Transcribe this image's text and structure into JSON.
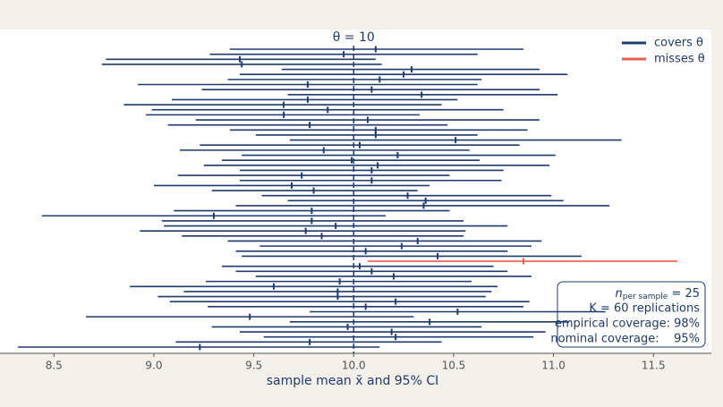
{
  "chart_data": {
    "type": "interval",
    "title": "θ = 10",
    "x_label": "sample mean x̄ and 95% CI",
    "reference": 10,
    "series": [
      {
        "name": "covers θ",
        "color": "#1f3a6e"
      },
      {
        "name": "misses θ",
        "color": "#e8604c"
      }
    ],
    "means": [
      10.11,
      9.95,
      9.43,
      9.44,
      10.29,
      10.25,
      10.13,
      9.77,
      10.09,
      10.34,
      9.77,
      9.65,
      9.87,
      9.65,
      10.07,
      9.78,
      10.11,
      10.11,
      10.51,
      10.03,
      9.85,
      10.22,
      9.99,
      10.12,
      10.09,
      9.74,
      10.09,
      9.69,
      9.8,
      10.27,
      10.36,
      10.35,
      9.79,
      9.3,
      9.79,
      9.91,
      9.76,
      9.84,
      10.32,
      10.24,
      10.06,
      10.42,
      10.85,
      10.03,
      10.09,
      10.2,
      9.93,
      9.6,
      9.92,
      9.92,
      10.21,
      10.06,
      10.52,
      9.48,
      10.38,
      9.97,
      10.19,
      10.21,
      9.78,
      9.23
    ],
    "lower": [
      9.38,
      9.28,
      8.76,
      8.74,
      9.64,
      9.43,
      9.37,
      8.92,
      9.24,
      9.67,
      9.09,
      8.85,
      8.99,
      8.96,
      9.21,
      9.07,
      9.38,
      9.51,
      9.68,
      9.23,
      9.13,
      9.44,
      9.34,
      9.25,
      9.43,
      9.12,
      9.43,
      9.0,
      9.29,
      9.54,
      9.67,
      9.41,
      9.1,
      8.44,
      9.04,
      9.05,
      8.93,
      9.14,
      9.37,
      9.53,
      9.41,
      9.44,
      10.07,
      9.34,
      9.41,
      9.51,
      9.26,
      8.88,
      9.15,
      9.02,
      9.08,
      9.27,
      9.78,
      8.66,
      9.68,
      9.29,
      9.43,
      9.55,
      9.11,
      8.32
    ],
    "upper": [
      10.85,
      10.62,
      10.11,
      10.14,
      10.93,
      11.07,
      10.64,
      10.62,
      10.93,
      11.02,
      10.52,
      10.44,
      10.75,
      10.33,
      10.93,
      10.47,
      10.87,
      10.62,
      11.34,
      10.83,
      10.58,
      11.01,
      10.63,
      10.98,
      10.75,
      10.48,
      10.74,
      10.38,
      10.32,
      10.99,
      11.05,
      11.28,
      10.48,
      10.16,
      10.55,
      10.77,
      10.56,
      10.55,
      10.94,
      10.89,
      10.77,
      11.14,
      11.62,
      10.7,
      10.77,
      10.89,
      10.59,
      10.72,
      10.69,
      10.66,
      10.88,
      10.85,
      11.26,
      10.3,
      11.08,
      10.64,
      10.96,
      10.9,
      10.44,
      10.13
    ],
    "xlim": [
      8.23,
      11.79
    ],
    "xticks": [
      8.5,
      {
        "value": 9,
        "label": "9.0"
      },
      9.5,
      {
        "value": 10,
        "label": "10.0"
      },
      10.5,
      {
        "value": 11,
        "label": "11.0"
      },
      11.5
    ],
    "legend": "upper right",
    "info": {
      "symbol": "n",
      "subscript": "per sample",
      "value": " = 25",
      "lines": [
        "K = 60 replications",
        "empirical coverage: 98%",
        "nominal coverage:    95%"
      ]
    }
  }
}
